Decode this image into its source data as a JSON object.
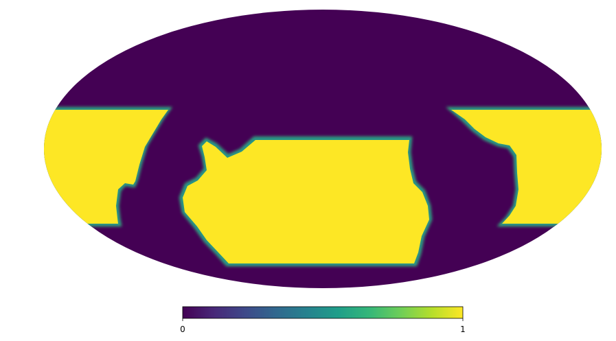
{
  "figure": {
    "projection": "mollweide",
    "map_type": "mask",
    "region_color": "#fde725",
    "background_color": "#440154",
    "edge_colors": [
      "#31688e",
      "#21918c",
      "#35b779"
    ]
  },
  "colorbar": {
    "colormap": "viridis",
    "stops": [
      "#440154",
      "#482878",
      "#3e4989",
      "#31688e",
      "#26828e",
      "#1f9e89",
      "#35b779",
      "#6ece58",
      "#b5de2b",
      "#fde725"
    ],
    "min_label": "0",
    "max_label": "1",
    "range": [
      0,
      1
    ]
  }
}
